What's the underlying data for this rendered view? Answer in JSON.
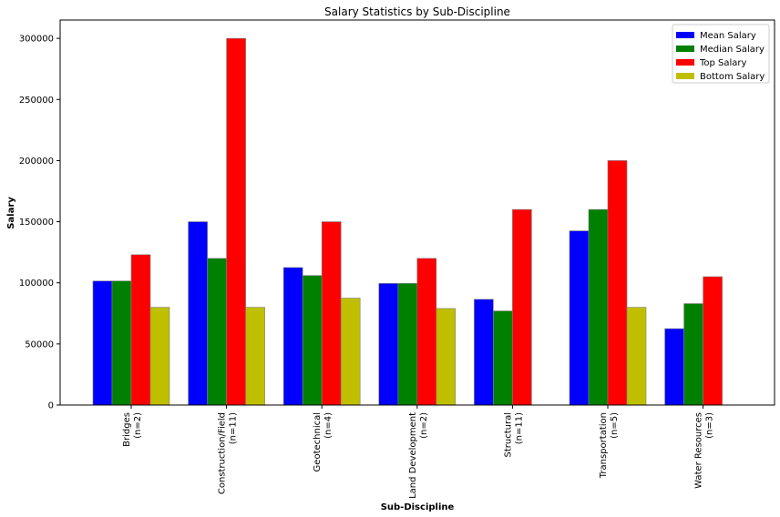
{
  "chart_data": {
    "type": "bar",
    "title": "Salary Statistics by Sub-Discipline",
    "xlabel": "Sub-Discipline",
    "ylabel": "Salary",
    "ylim": [
      0,
      315000
    ],
    "yticks": [
      0,
      50000,
      100000,
      150000,
      200000,
      250000,
      300000
    ],
    "grid": false,
    "legend_position": "top-right",
    "categories": [
      [
        "Bridges",
        "(n=2)"
      ],
      [
        "Construction/Field",
        "(n=11)"
      ],
      [
        "Geotechnical",
        "(n=4)"
      ],
      [
        "Land Development",
        "(n=2)"
      ],
      [
        "Structural",
        "(n=11)"
      ],
      [
        "Transportation",
        "(n=5)"
      ],
      [
        "Water Resources",
        "(n=3)"
      ]
    ],
    "series": [
      {
        "name": "Mean Salary",
        "color": "#0000ff",
        "values": [
          101500,
          150000,
          112500,
          99500,
          86500,
          142500,
          62500
        ]
      },
      {
        "name": "Median Salary",
        "color": "#008000",
        "values": [
          101500,
          120000,
          106000,
          99500,
          77000,
          160000,
          83000
        ]
      },
      {
        "name": "Top Salary",
        "color": "#ff0000",
        "values": [
          123000,
          300000,
          150000,
          120000,
          160000,
          200000,
          105000
        ]
      },
      {
        "name": "Bottom Salary",
        "color": "#bfbf00",
        "values": [
          80000,
          80000,
          87500,
          79000,
          null,
          80000,
          null
        ]
      }
    ]
  }
}
